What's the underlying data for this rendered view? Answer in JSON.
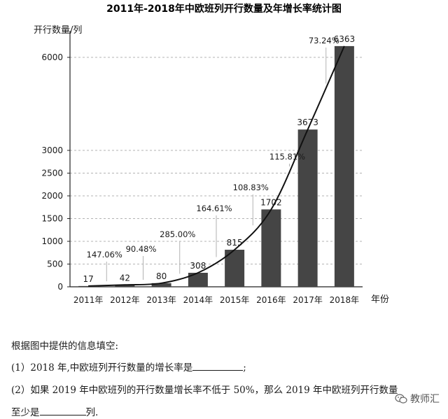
{
  "chart_data": {
    "type": "bar",
    "title": "2011年-2018年中欧班列开行数量及年增长率统计图",
    "ylabel": "开行数量/列",
    "xlabel": "年份",
    "categories": [
      "2011年",
      "2012年",
      "2013年",
      "2014年",
      "2015年",
      "2016年",
      "2017年",
      "2018年"
    ],
    "values": [
      17,
      42,
      80,
      308,
      815,
      1702,
      3673,
      6363
    ],
    "value_labels": [
      "17",
      "42",
      "80",
      "308",
      "815",
      "1702",
      "3673",
      "6363"
    ],
    "growth_rates": [
      "",
      "147.06%",
      "90.48%",
      "285.00%",
      "164.61%",
      "108.83%",
      "115.81%",
      "73.24%"
    ],
    "yticks": [
      {
        "value": 0,
        "label": "0"
      },
      {
        "value": 500,
        "label": "500"
      },
      {
        "value": 1000,
        "label": "1000"
      },
      {
        "value": 1500,
        "label": "1500"
      },
      {
        "value": 2000,
        "label": "2000"
      },
      {
        "value": 2500,
        "label": "2500"
      },
      {
        "value": 3000,
        "label": "3000"
      },
      {
        "value": 6000,
        "label": "6000"
      }
    ],
    "ylim": [
      0,
      6500
    ],
    "grid": true,
    "bar_color": "#454545"
  },
  "questions": {
    "intro": "根据图中提供的信息填空:",
    "q1": "(1）2018 年,中欧班列开行数量的增长率是",
    "q1_end": ";",
    "q2_line1": "(2）如果 2019 年中欧班列的开行数量增长率不低于 50%，那么 2019 年中欧班列开行数量",
    "q2_line2_start": "至少是",
    "q2_line2_end": "列."
  },
  "watermark": {
    "text": "教师汇",
    "icon": "wechat-icon"
  }
}
